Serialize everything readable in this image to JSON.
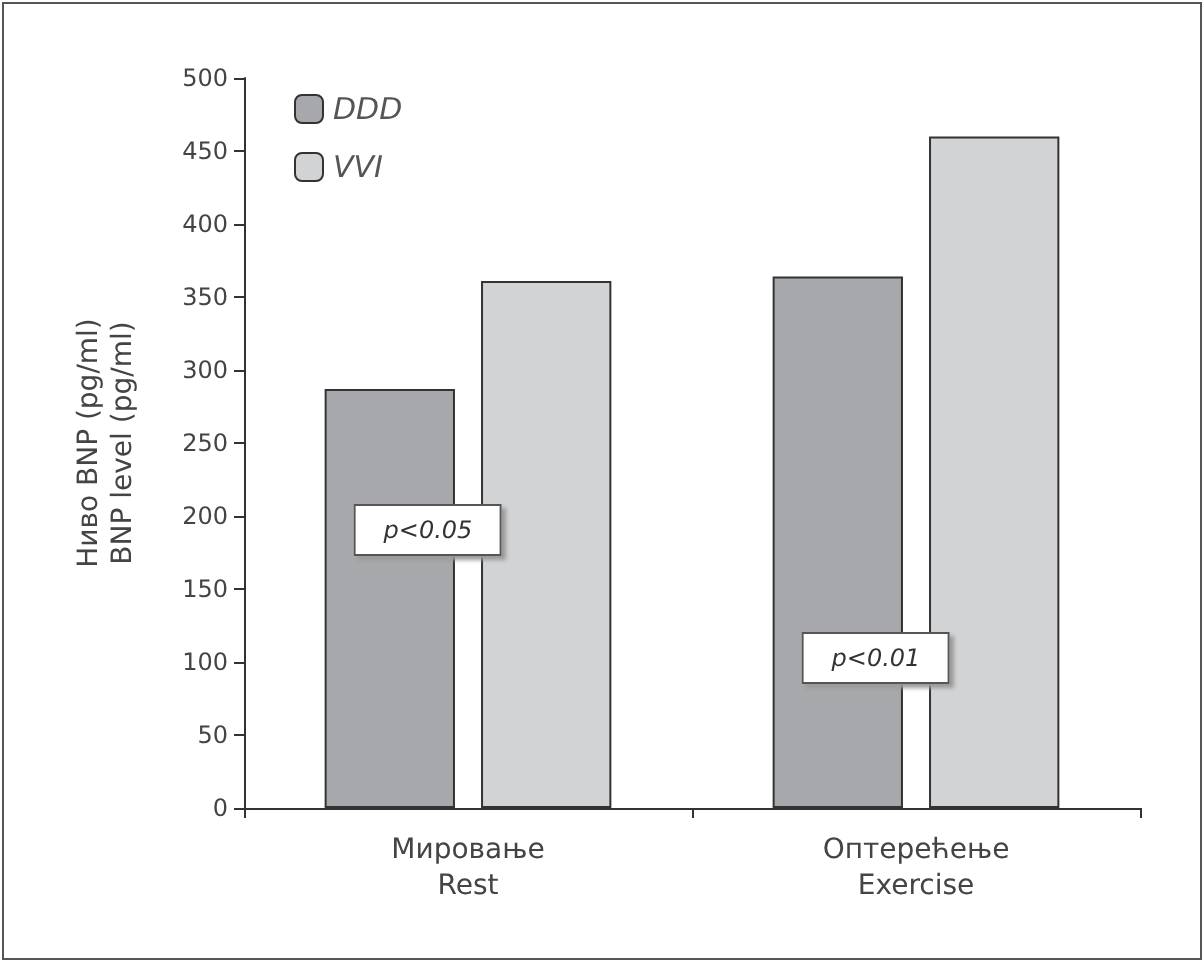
{
  "chart_data": {
    "type": "bar",
    "ylabel": "Ниво BNP (pg/ml)\nBNP level (pg/ml)",
    "categories": [
      "Мировање\nRest",
      "Оптерећење\nExercise"
    ],
    "series": [
      {
        "name": "DDD",
        "color": "#a7a8ab",
        "values": [
          287,
          364
        ]
      },
      {
        "name": "VVI",
        "color": "#d2d3d5",
        "values": [
          361,
          460
        ]
      }
    ],
    "ylim": [
      0,
      500
    ],
    "yticks": [
      0,
      50,
      100,
      150,
      200,
      250,
      300,
      350,
      400,
      450,
      500
    ],
    "annotations": [
      "p<0.05",
      "p<0.01"
    ],
    "legend": "top left",
    "grid": false
  }
}
